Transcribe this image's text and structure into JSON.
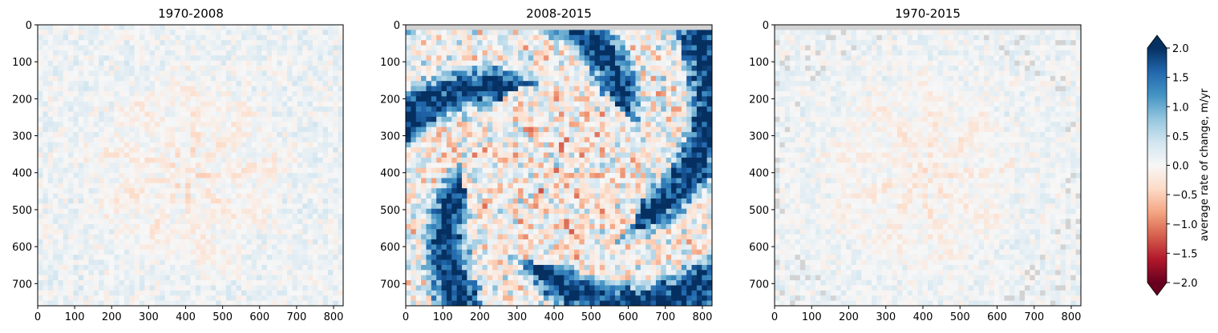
{
  "chart_data": [
    {
      "type": "heatmap",
      "title": "1970-2008",
      "x_ticks": [
        0,
        100,
        200,
        300,
        400,
        500,
        600,
        700,
        800
      ],
      "y_ticks": [
        0,
        100,
        200,
        300,
        400,
        500,
        600,
        700
      ],
      "xlim": [
        0,
        826
      ],
      "ylim": [
        760,
        0
      ],
      "intensity": 0.55,
      "nodata_top": false
    },
    {
      "type": "heatmap",
      "title": "2008-2015",
      "x_ticks": [
        0,
        100,
        200,
        300,
        400,
        500,
        600,
        700,
        800
      ],
      "y_ticks": [
        0,
        100,
        200,
        300,
        400,
        500,
        600,
        700
      ],
      "xlim": [
        0,
        826
      ],
      "ylim": [
        760,
        0
      ],
      "intensity": 1.0,
      "nodata_top": true
    },
    {
      "type": "heatmap",
      "title": "1970-2015",
      "x_ticks": [
        0,
        100,
        200,
        300,
        400,
        500,
        600,
        700,
        800
      ],
      "y_ticks": [
        0,
        100,
        200,
        300,
        400,
        500,
        600,
        700
      ],
      "xlim": [
        0,
        826
      ],
      "ylim": [
        760,
        0
      ],
      "intensity": 0.5,
      "nodata_top": true
    }
  ],
  "colorbar": {
    "label": "average rate of change, m/yr",
    "ticks": [
      "2.0",
      "1.5",
      "1.0",
      "0.5",
      "0.0",
      "−0.5",
      "−1.0",
      "−1.5",
      "−2.0"
    ],
    "vmin": -2.0,
    "vmax": 2.0,
    "extend": "both",
    "colormap": "RdBu",
    "colors": [
      "#67001f",
      "#b2182b",
      "#d6604d",
      "#f4a582",
      "#fddbc7",
      "#f7f7f7",
      "#d1e5f0",
      "#92c5de",
      "#4393c3",
      "#2166ac",
      "#053061"
    ]
  },
  "nodata_color": "#d3d3d3"
}
